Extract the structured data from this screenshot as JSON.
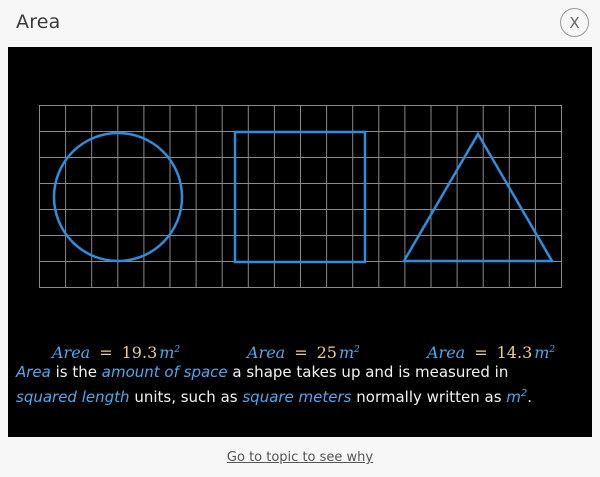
{
  "dialog": {
    "title": "Area",
    "close_label": "X"
  },
  "shapes": [
    {
      "shape": "circle",
      "label_word": "Area",
      "equals": "=",
      "value": "19.3",
      "unit": "m",
      "unit_exponent": "2"
    },
    {
      "shape": "square",
      "label_word": "Area",
      "equals": "=",
      "value": "25",
      "unit": "m",
      "unit_exponent": "2"
    },
    {
      "shape": "triangle",
      "label_word": "Area",
      "equals": "=",
      "value": "14.3",
      "unit": "m",
      "unit_exponent": "2"
    }
  ],
  "description": {
    "term_area": "Area",
    "text_1": " is the ",
    "term_space": "amount of space",
    "text_2": " a shape takes up and is measured in ",
    "term_squared": "squared length",
    "text_3": " units, such as ",
    "term_sqm": "square meters",
    "text_4": " normally written as ",
    "term_unit": "m",
    "term_exponent": "2",
    "text_5": "."
  },
  "footer": {
    "link_label": "Go to topic to see why"
  },
  "colors": {
    "shape_stroke": "#2b8fe0",
    "highlight": "#4ea8ee",
    "value": "#e8d08a",
    "grid": "#8a8a8a",
    "panel_bg": "#000000"
  }
}
